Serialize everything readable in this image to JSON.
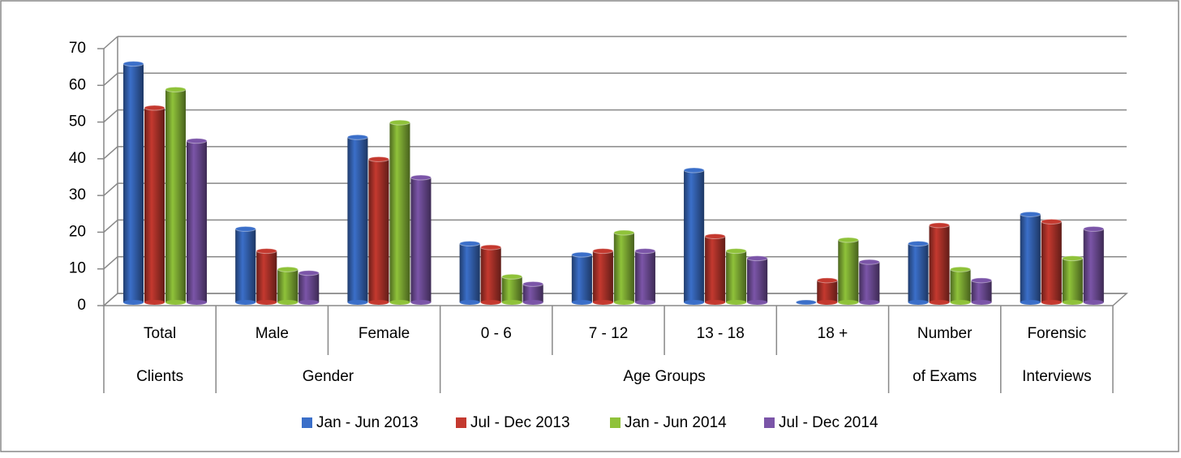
{
  "chart_data": {
    "type": "bar3d",
    "categories": [
      "Total",
      "Male",
      "Female",
      "0 - 6",
      "7 - 12",
      "13 - 18",
      "18 +",
      "Number",
      "Forensic"
    ],
    "groups": [
      {
        "label": "Clients",
        "span": 1
      },
      {
        "label": "Gender",
        "span": 2
      },
      {
        "label": "Age Groups",
        "span": 4
      },
      {
        "label": "of Exams",
        "span": 1
      },
      {
        "label": "Interviews",
        "span": 1
      }
    ],
    "series": [
      {
        "name": "Jan - Jun 2013",
        "color": "#3b6fc9",
        "values": [
          65,
          20,
          45,
          16,
          13,
          36,
          0,
          16,
          24
        ]
      },
      {
        "name": "Jul - Dec 2013",
        "color": "#c4392f",
        "values": [
          53,
          14,
          39,
          15,
          14,
          18,
          6,
          21,
          22
        ]
      },
      {
        "name": "Jan - Jun 2014",
        "color": "#8fc23a",
        "values": [
          58,
          9,
          49,
          7,
          19,
          14,
          17,
          9,
          12
        ]
      },
      {
        "name": "Jul - Dec 2014",
        "color": "#7b55a8",
        "values": [
          44,
          8,
          34,
          5,
          14,
          12,
          11,
          6,
          20
        ]
      }
    ],
    "ylim": [
      0,
      70
    ],
    "yticks": [
      0,
      10,
      20,
      30,
      40,
      50,
      60,
      70
    ],
    "grid": true,
    "legend": "bottom"
  }
}
